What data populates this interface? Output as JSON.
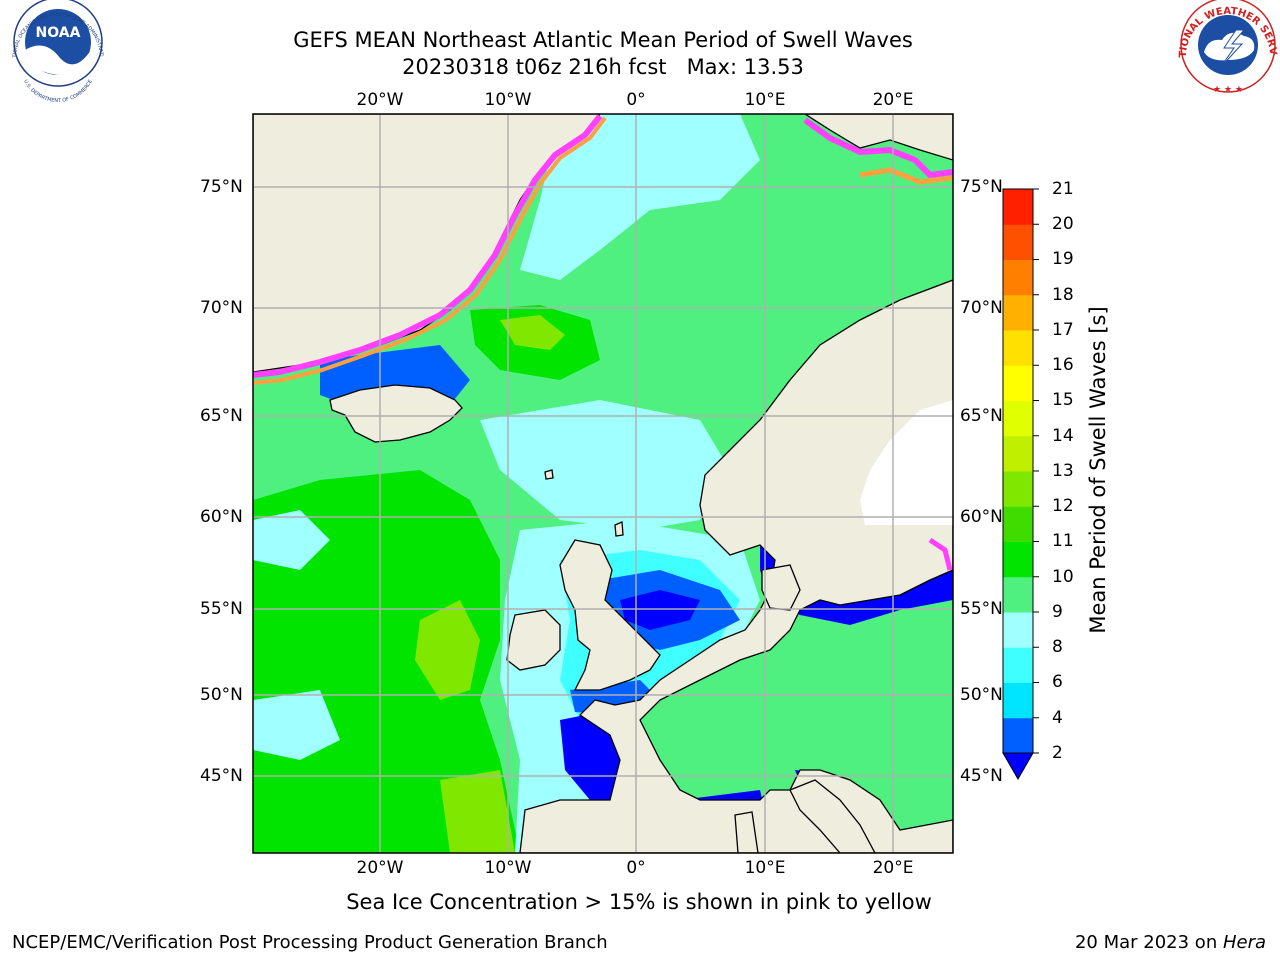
{
  "title": {
    "line1": "GEFS MEAN Northeast Atlantic Mean Period of Swell Waves",
    "line2": "20230318 t06z 216h fcst   Max: 13.53"
  },
  "map": {
    "lat_labels": [
      "75°N",
      "70°N",
      "65°N",
      "60°N",
      "55°N",
      "50°N",
      "45°N"
    ],
    "lon_labels": [
      "20°W",
      "10°W",
      "0°",
      "10°E",
      "20°E"
    ],
    "land_color": "#efedde",
    "ice_colors": [
      "#ff40ff",
      "#ffa040",
      "#ffff00"
    ]
  },
  "colorbar": {
    "label": "Mean Period of Swell Waves [s]",
    "ticks": [
      "2",
      "4",
      "6",
      "8",
      "9",
      "10",
      "11",
      "12",
      "13",
      "14",
      "15",
      "16",
      "17",
      "18",
      "19",
      "20",
      "21"
    ],
    "colors": [
      "#0060ff",
      "#00e5ff",
      "#40ffff",
      "#a0ffff",
      "#50f080",
      "#00e400",
      "#40dc00",
      "#80e800",
      "#c0f000",
      "#e0ff00",
      "#ffff00",
      "#ffe000",
      "#ffb000",
      "#ff8000",
      "#ff5000",
      "#ff2000"
    ],
    "under_color": "#0000ff"
  },
  "note": "Sea Ice Concentration > 15% is shown in pink to yellow",
  "footer": {
    "left": "NCEP/EMC/Verification Post Processing Product Generation Branch",
    "right_date": "20 Mar 2023 on ",
    "right_host": "Hera"
  },
  "logos": {
    "noaa": "NOAA",
    "noaa_ring": "NATIONAL OCEANIC AND ATMOSPHERIC ADMINISTRATION",
    "noaa_ring_bottom": "U.S. DEPARTMENT OF COMMERCE",
    "nws_ring": "NATIONAL WEATHER SERVICE"
  }
}
